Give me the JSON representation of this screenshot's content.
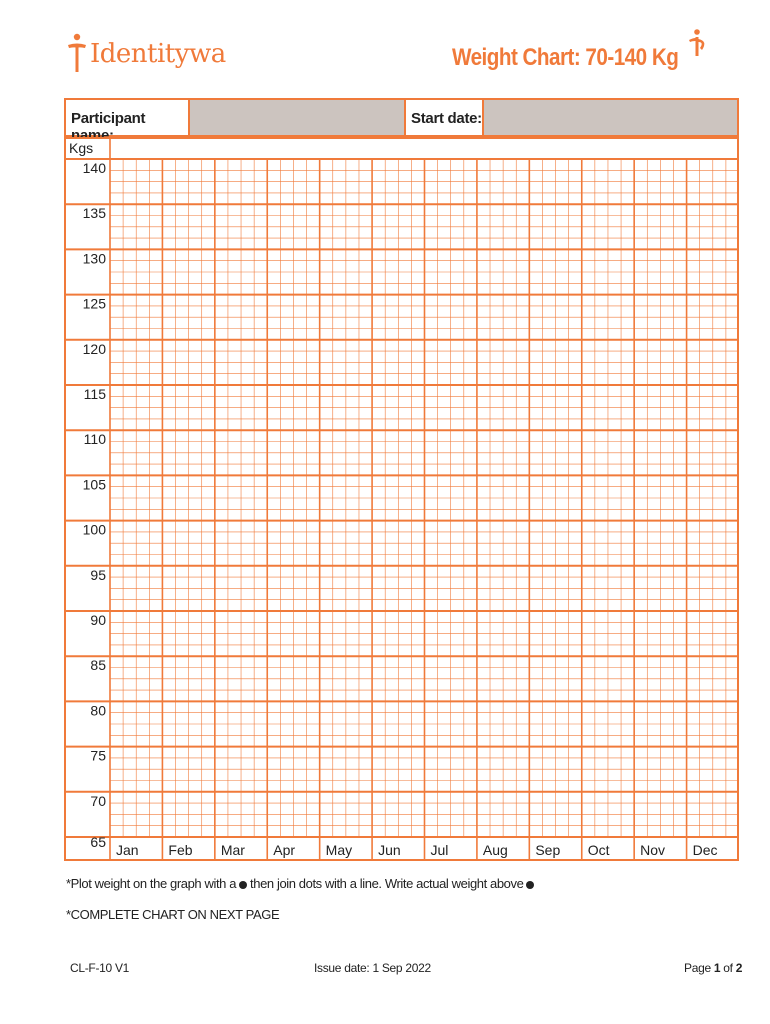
{
  "brand": {
    "name": "Identitywa",
    "color": "#f07a3a",
    "logo_icon": "person-figure-icon"
  },
  "title": "Weight Chart: 70-140 Kg",
  "header": {
    "participant_label": "Participant name:",
    "participant_value": "",
    "start_label": "Start date:",
    "start_value": ""
  },
  "chart": {
    "unit_label": "Kgs",
    "y_ticks": [
      140,
      135,
      130,
      125,
      120,
      115,
      110,
      105,
      100,
      95,
      90,
      85,
      80,
      75,
      70,
      65
    ],
    "months": [
      "Jan",
      "Feb",
      "Mar",
      "Apr",
      "May",
      "Jun",
      "Jul",
      "Aug",
      "Sep",
      "Oct",
      "Nov",
      "Dec"
    ],
    "subdivisions_per_month": 4,
    "subdivisions_per_5kg": 4
  },
  "notes": {
    "plot_before": "*Plot weight on the graph with a",
    "plot_middle": "then join dots with a line.  Write actual weight above",
    "complete": "*COMPLETE CHART ON NEXT PAGE"
  },
  "footer": {
    "code": "CL-F-10 V1",
    "issue": "Issue date: 1 Sep 2022",
    "page_prefix": "Page",
    "page_num": "1",
    "page_of": "of",
    "page_total": "2"
  }
}
